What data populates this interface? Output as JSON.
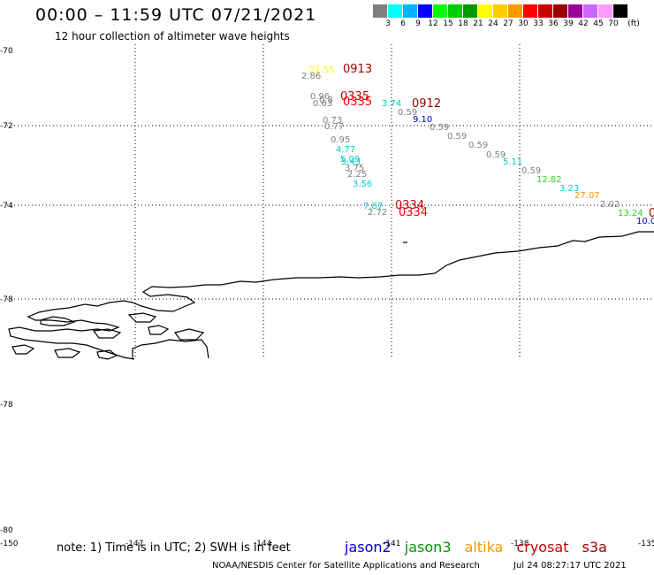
{
  "title": "00:00 – 11:59 UTC 07/21/2021",
  "subtitle": "12 hour collection of altimeter wave heights",
  "legend": {
    "unit": "(ft)",
    "colors": [
      "#7f7f7f",
      "#00ffff",
      "#00b2ff",
      "#0000ff",
      "#00ff00",
      "#00cc00",
      "#009900",
      "#ffff00",
      "#ffcc00",
      "#ff9900",
      "#ff0000",
      "#cc0000",
      "#990000",
      "#990099",
      "#cc66ff",
      "#ff99ff",
      "#000000"
    ],
    "ticks": [
      "3",
      "6",
      "9",
      "12",
      "15",
      "18",
      "21",
      "24",
      "27",
      "30",
      "33",
      "36",
      "39",
      "42",
      "45",
      "70"
    ]
  },
  "map": {
    "lat_labels": [
      "-70",
      "-72",
      "-74",
      "-78",
      "-78",
      "-80"
    ],
    "lon_labels": [
      "-150",
      "-147",
      "-144",
      "-141",
      "-138",
      "-135"
    ]
  },
  "wave_heights": [
    {
      "text": "21.55",
      "color": "#ffff00"
    },
    {
      "text": "2.86",
      "color": "#7f7f7f"
    },
    {
      "text": "0.96",
      "color": "#7f7f7f"
    },
    {
      "text": "0.8",
      "color": "#7f7f7f"
    },
    {
      "text": "0.63",
      "color": "#7f7f7f"
    },
    {
      "text": "3.74",
      "color": "#00cccc"
    },
    {
      "text": "0.59",
      "color": "#7f7f7f"
    },
    {
      "text": "9.10",
      "color": "#0000cc"
    },
    {
      "text": "0.73",
      "color": "#7f7f7f"
    },
    {
      "text": "0.77",
      "color": "#7f7f7f"
    },
    {
      "text": "0.59",
      "color": "#7f7f7f"
    },
    {
      "text": "0.59",
      "color": "#7f7f7f"
    },
    {
      "text": "0.95",
      "color": "#7f7f7f"
    },
    {
      "text": "0.59",
      "color": "#7f7f7f"
    },
    {
      "text": "4.77",
      "color": "#00cccc"
    },
    {
      "text": "0.59",
      "color": "#7f7f7f"
    },
    {
      "text": "5.09",
      "color": "#00cccc"
    },
    {
      "text": "5.11",
      "color": "#00cccc"
    },
    {
      "text": "5.43",
      "color": "#00cccc"
    },
    {
      "text": "3.75",
      "color": "#7f7f7f"
    },
    {
      "text": "0.59",
      "color": "#7f7f7f"
    },
    {
      "text": "2.25",
      "color": "#7f7f7f"
    },
    {
      "text": "12.82",
      "color": "#33cc33"
    },
    {
      "text": "3.56",
      "color": "#00cccc"
    },
    {
      "text": "3.23",
      "color": "#00cccc"
    },
    {
      "text": "27.07",
      "color": "#ff9900"
    },
    {
      "text": "7.87",
      "color": "#00cccc"
    },
    {
      "text": "2.02",
      "color": "#7f7f7f"
    },
    {
      "text": "2.72",
      "color": "#7f7f7f"
    },
    {
      "text": "13.24",
      "color": "#33cc33"
    },
    {
      "text": "10.0",
      "color": "#0000cc"
    }
  ],
  "pass_times": [
    {
      "text": "0913",
      "color": "#990000"
    },
    {
      "text": "0335",
      "color": "#cc0000"
    },
    {
      "text": "0335",
      "color": "#ff0000"
    },
    {
      "text": "0912",
      "color": "#990000"
    },
    {
      "text": "0334",
      "color": "#cc0000"
    },
    {
      "text": "0334",
      "color": "#ff0000"
    },
    {
      "text": "0",
      "color": "#990000"
    }
  ],
  "footer": {
    "note": "note:  1) Time is in UTC;  2) SWH is in feet",
    "satellites": [
      {
        "name": "jason2",
        "color": "#0000cc"
      },
      {
        "name": "jason3",
        "color": "#009900"
      },
      {
        "name": "altika",
        "color": "#ff9900"
      },
      {
        "name": "cryosat",
        "color": "#cc0000"
      },
      {
        "name": "s3a",
        "color": "#990000"
      }
    ],
    "credit": "NOAA/NESDIS Center for Satellite Applications and Research",
    "timestamp": "Jul 24 08:27:17 UTC 2021"
  }
}
